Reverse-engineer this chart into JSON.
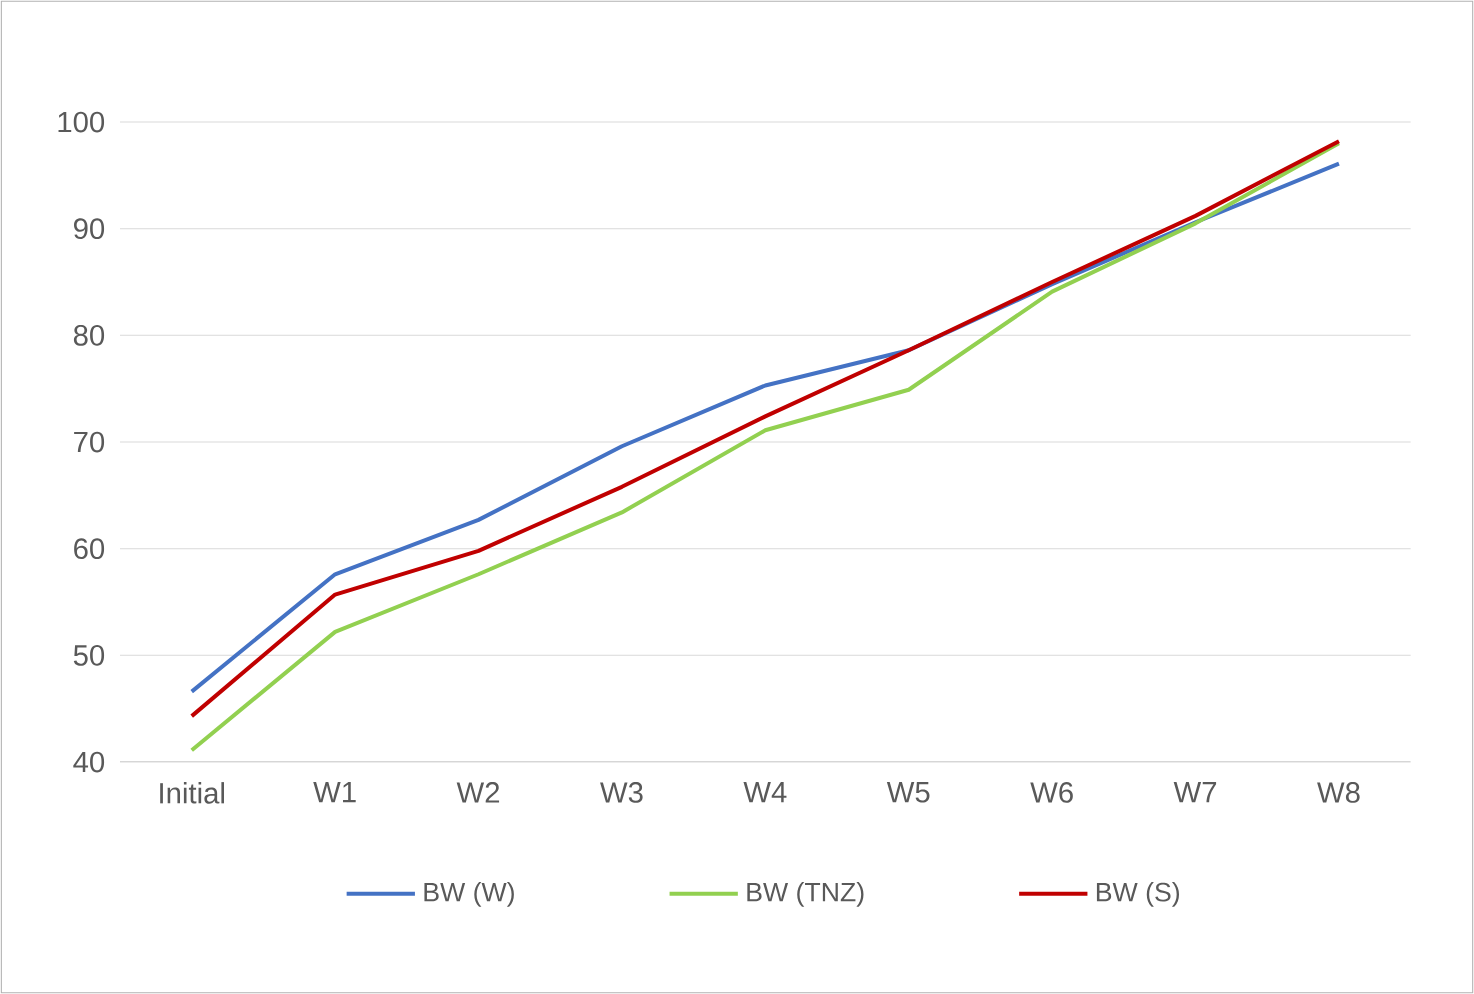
{
  "chart_data": {
    "type": "line",
    "categories": [
      "Initial",
      "W1",
      "W2",
      "W3",
      "W4",
      "W5",
      "W6",
      "W7",
      "W8"
    ],
    "series": [
      {
        "name": "BW (W)",
        "color": "#4472c4",
        "values": [
          46.6,
          57.6,
          62.7,
          69.6,
          75.3,
          78.6,
          84.8,
          90.6,
          96.1
        ]
      },
      {
        "name": "BW (TNZ)",
        "color": "#92d050",
        "values": [
          41.1,
          52.2,
          57.6,
          63.4,
          71.1,
          74.9,
          84.1,
          90.5,
          98.0
        ]
      },
      {
        "name": "BW (S)",
        "color": "#c00000",
        "values": [
          44.3,
          55.7,
          59.8,
          65.8,
          72.4,
          78.6,
          85.0,
          91.2,
          98.2
        ]
      }
    ],
    "ylim": [
      40,
      100
    ],
    "yticks": [
      40,
      50,
      60,
      70,
      80,
      90,
      100
    ],
    "grid": "y",
    "legend": "bottom",
    "marker": "none",
    "line_style": "solid"
  }
}
